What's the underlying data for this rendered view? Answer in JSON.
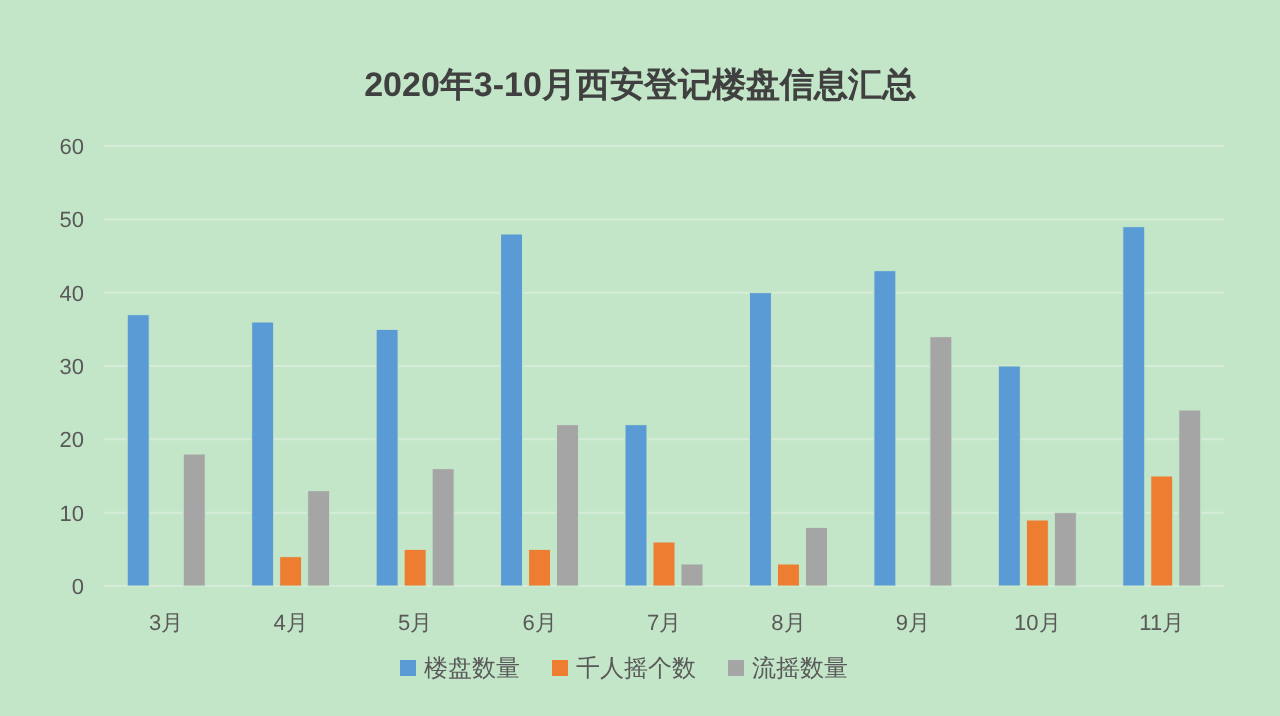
{
  "chart_data": {
    "type": "bar",
    "title": "2020年3-10月西安登记楼盘信息汇总",
    "categories": [
      "3月",
      "4月",
      "5月",
      "6月",
      "7月",
      "8月",
      "9月",
      "10月",
      "11月"
    ],
    "series": [
      {
        "name": "楼盘数量",
        "color": "#5b9bd5",
        "values": [
          37,
          36,
          35,
          48,
          22,
          40,
          43,
          30,
          49
        ]
      },
      {
        "name": "千人摇个数",
        "color": "#ed7d31",
        "values": [
          null,
          4,
          5,
          5,
          6,
          3,
          null,
          9,
          15
        ]
      },
      {
        "name": "流摇数量",
        "color": "#a5a5a5",
        "values": [
          18,
          13,
          16,
          22,
          3,
          8,
          34,
          10,
          24
        ]
      }
    ],
    "ylim": [
      0,
      60
    ],
    "yticks": [
      0,
      10,
      20,
      30,
      40,
      50,
      60
    ],
    "grid": "y",
    "legend": "bottom"
  }
}
